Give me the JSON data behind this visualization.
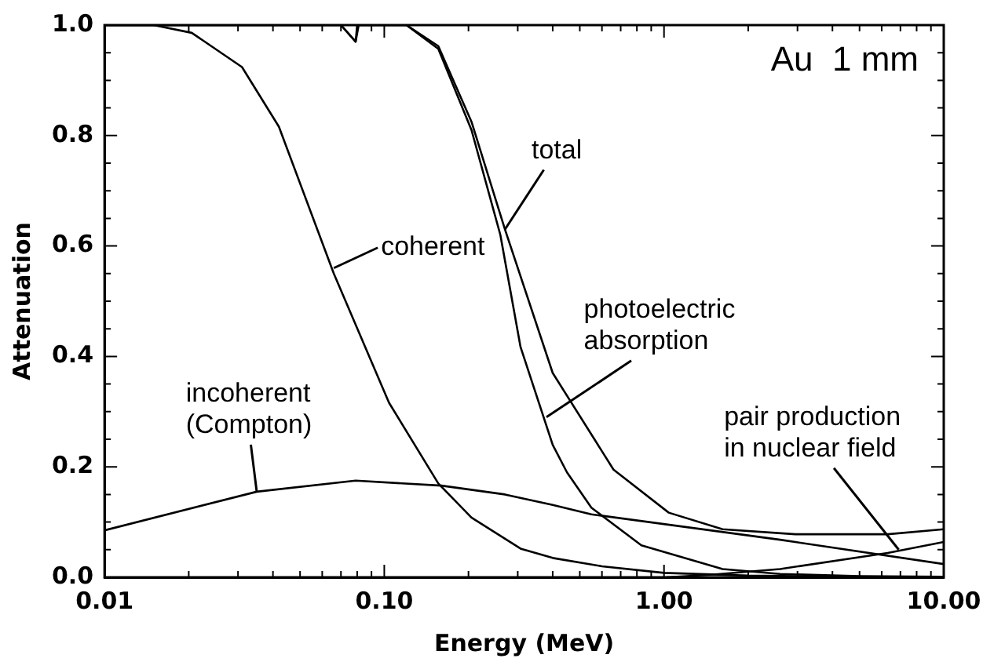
{
  "chart_data": {
    "type": "line",
    "xlabel": "Energy (MeV)",
    "ylabel": "Attenuation",
    "log": "x",
    "legend": false,
    "grid": false,
    "marker": "none",
    "line_style": "solid",
    "xlim": [
      0.01,
      10
    ],
    "xticks": [
      {
        "value": 0.01,
        "label": "0.01"
      },
      {
        "value": 0.02,
        "label": null
      },
      {
        "value": 0.03,
        "label": null
      },
      {
        "value": 0.04,
        "label": null
      },
      {
        "value": 0.05,
        "label": null
      },
      {
        "value": 0.06,
        "label": null
      },
      {
        "value": 0.07,
        "label": null
      },
      {
        "value": 0.08,
        "label": null
      },
      {
        "value": 0.09,
        "label": null
      },
      {
        "value": 0.1,
        "label": "0.10"
      },
      {
        "value": 0.2,
        "label": null
      },
      {
        "value": 0.3,
        "label": null
      },
      {
        "value": 0.4,
        "label": null
      },
      {
        "value": 0.5,
        "label": null
      },
      {
        "value": 0.6,
        "label": null
      },
      {
        "value": 0.7,
        "label": null
      },
      {
        "value": 0.8,
        "label": null
      },
      {
        "value": 0.9,
        "label": null
      },
      {
        "value": 1,
        "label": "1.00"
      },
      {
        "value": 2,
        "label": null
      },
      {
        "value": 3,
        "label": null
      },
      {
        "value": 4,
        "label": null
      },
      {
        "value": 5,
        "label": null
      },
      {
        "value": 6,
        "label": null
      },
      {
        "value": 7,
        "label": null
      },
      {
        "value": 8,
        "label": null
      },
      {
        "value": 9,
        "label": null
      },
      {
        "value": 10,
        "label": "10.00"
      }
    ],
    "ylim": [
      0,
      1
    ],
    "yticks": [
      {
        "value": 0,
        "label": "0.0"
      },
      {
        "value": 0.05,
        "label": null
      },
      {
        "value": 0.1,
        "label": null
      },
      {
        "value": 0.15,
        "label": null
      },
      {
        "value": 0.2,
        "label": "0.2"
      },
      {
        "value": 0.25,
        "label": null
      },
      {
        "value": 0.3,
        "label": null
      },
      {
        "value": 0.35,
        "label": null
      },
      {
        "value": 0.4,
        "label": "0.4"
      },
      {
        "value": 0.45,
        "label": null
      },
      {
        "value": 0.5,
        "label": null
      },
      {
        "value": 0.55,
        "label": null
      },
      {
        "value": 0.6,
        "label": "0.6"
      },
      {
        "value": 0.65,
        "label": null
      },
      {
        "value": 0.7,
        "label": null
      },
      {
        "value": 0.75,
        "label": null
      },
      {
        "value": 0.8,
        "label": "0.8"
      },
      {
        "value": 0.85,
        "label": null
      },
      {
        "value": 0.9,
        "label": null
      },
      {
        "value": 0.95,
        "label": null
      },
      {
        "value": 1,
        "label": "1.0"
      }
    ],
    "series": [
      {
        "color": "#000000",
        "x": [
          0.01,
          0.07,
          0.079,
          0.081,
          0.12,
          0.156,
          0.205,
          0.27,
          0.4,
          0.66,
          1.04,
          1.62,
          2.95,
          6.3,
          10
        ],
        "values": [
          1,
          1,
          0.97,
          1,
          1,
          0.962,
          0.825,
          0.63,
          0.37,
          0.195,
          0.117,
          0.087,
          0.078,
          0.078,
          0.087
        ]
      },
      {
        "color": "#000000",
        "x": [
          0.01,
          0.07,
          0.079,
          0.08,
          0.12,
          0.156,
          0.205,
          0.26,
          0.307,
          0.4,
          0.45,
          0.55,
          0.83,
          1.62,
          2.6,
          5,
          10
        ],
        "values": [
          1,
          1,
          0.97,
          1,
          1,
          0.957,
          0.81,
          0.62,
          0.417,
          0.24,
          0.19,
          0.126,
          0.058,
          0.015,
          0.006,
          0.002,
          0.001
        ]
      },
      {
        "color": "#000000",
        "x": [
          0.01,
          0.015,
          0.0205,
          0.031,
          0.042,
          0.066,
          0.104,
          0.156,
          0.205,
          0.307,
          0.4,
          0.6,
          1,
          2,
          5,
          10
        ],
        "values": [
          1,
          1,
          0.986,
          0.924,
          0.816,
          0.55,
          0.316,
          0.17,
          0.108,
          0.052,
          0.035,
          0.02,
          0.008,
          0.003,
          0.001,
          0
        ]
      },
      {
        "color": "#000000",
        "x": [
          0.01,
          0.035,
          0.079,
          0.16,
          0.27,
          0.4,
          0.55,
          2.6,
          10
        ],
        "values": [
          0.085,
          0.155,
          0.175,
          0.166,
          0.15,
          0.131,
          0.114,
          0.068,
          0.024
        ]
      },
      {
        "color": "#000000",
        "x": [
          1.02,
          1.5,
          2.6,
          6.3,
          10
        ],
        "values": [
          0,
          0.005,
          0.015,
          0.044,
          0.064
        ]
      }
    ],
    "annotations": [
      "Au  1 mm",
      {
        "text": "total",
        "x": 0.27,
        "y": 0.63
      },
      {
        "text": "coherent",
        "x": 0.066,
        "y": 0.56
      },
      {
        "text": "photoelectric\nabsorption",
        "x": 0.38,
        "y": 0.29
      },
      {
        "text": "incoherent\n(Compton)",
        "x": 0.035,
        "y": 0.155
      },
      {
        "text": "pair production\nin nuclear field",
        "x": 6.9,
        "y": 0.05
      }
    ]
  }
}
